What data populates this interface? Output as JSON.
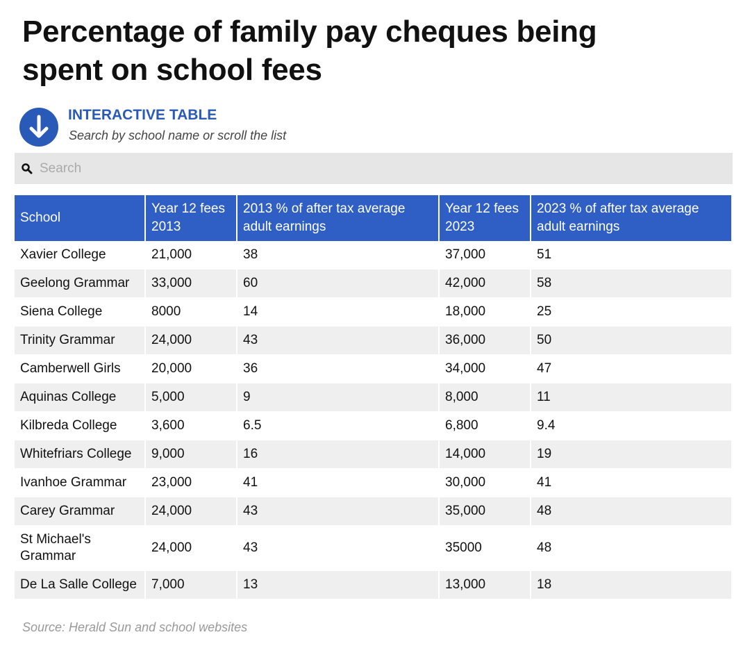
{
  "header": {
    "title_lines": [
      "Percentage of family pay cheques being",
      "spent on school fees"
    ],
    "label": "INTERACTIVE TABLE",
    "subtitle": "Search by school name or scroll the list"
  },
  "search": {
    "placeholder": "Search"
  },
  "table": {
    "columns": [
      "School",
      "Year 12 fees 2013",
      "2013 % of after tax average adult earnings",
      "Year 12 fees 2023",
      "2023 % of after tax average adult earnings"
    ],
    "rows": [
      [
        "Xavier College",
        "21,000",
        "38",
        "37,000",
        "51"
      ],
      [
        "Geelong Grammar",
        "33,000",
        "60",
        "42,000",
        "58"
      ],
      [
        "Siena College",
        "8000",
        "14",
        "18,000",
        "25"
      ],
      [
        "Trinity Grammar",
        "24,000",
        "43",
        "36,000",
        "50"
      ],
      [
        "Camberwell Girls",
        "20,000",
        "36",
        "34,000",
        "47"
      ],
      [
        "Aquinas College",
        "5,000",
        "9",
        "8,000",
        "11"
      ],
      [
        "Kilbreda College",
        "3,600",
        "6.5",
        "6,800",
        "9.4"
      ],
      [
        "Whitefriars College",
        "9,000",
        "16",
        "14,000",
        "19"
      ],
      [
        "Ivanhoe Grammar",
        "23,000",
        "41",
        "30,000",
        "41"
      ],
      [
        "Carey Grammar",
        "24,000",
        "43",
        "35,000",
        "48"
      ],
      [
        "St Michael's Grammar",
        "24,000",
        "43",
        "35000",
        "48"
      ],
      [
        "De La Salle College",
        "7,000",
        "13",
        "13,000",
        "18"
      ]
    ]
  },
  "footer": {
    "source": "Source: Herald Sun and school websites"
  }
}
